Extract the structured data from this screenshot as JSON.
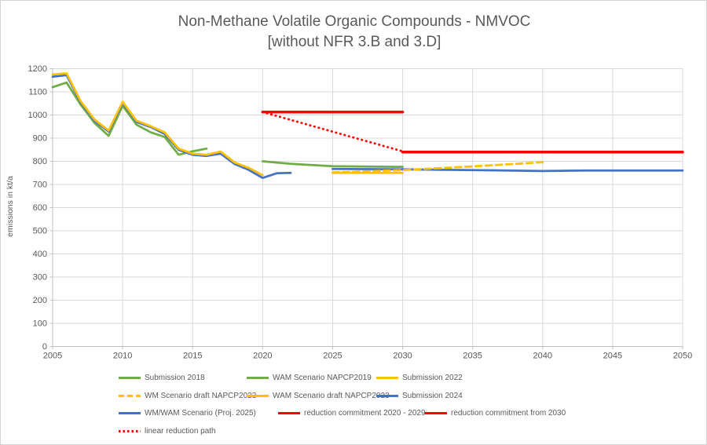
{
  "title": {
    "line1": "Non-Methane Volatile Organic Compounds - NMVOC",
    "line2": "[without NFR 3.B and 3.D]"
  },
  "y_axis": {
    "label": "emissions in kt/a",
    "ticks": [
      0,
      100,
      200,
      300,
      400,
      500,
      600,
      700,
      800,
      900,
      1000,
      1100,
      1200
    ]
  },
  "x_axis": {
    "ticks": [
      2005,
      2010,
      2015,
      2020,
      2025,
      2030,
      2035,
      2040,
      2045,
      2050
    ]
  },
  "chart_data": {
    "type": "line",
    "title": "Non-Methane Volatile Organic Compounds - NMVOC [without NFR 3.B and 3.D]",
    "xlabel": "",
    "ylabel": "emissions in kt/a",
    "xlim": [
      2005,
      2050
    ],
    "ylim": [
      0,
      1200
    ],
    "grid": true,
    "legend_position": "bottom",
    "series": [
      {
        "key": "submission_2018",
        "name": "Submission 2018",
        "color": "#70AD47",
        "style": "solid",
        "width": 2.75,
        "points": [
          [
            2005,
            1120
          ],
          [
            2006,
            1140
          ],
          [
            2007,
            1045
          ],
          [
            2008,
            965
          ],
          [
            2009,
            910
          ],
          [
            2010,
            1040
          ],
          [
            2011,
            958
          ],
          [
            2012,
            925
          ],
          [
            2013,
            905
          ],
          [
            2014,
            828
          ],
          [
            2015,
            843
          ],
          [
            2016,
            855
          ]
        ]
      },
      {
        "key": "wam_napcp2019",
        "name": "WAM Scenario NAPCP2019",
        "color": "#70AD47",
        "style": "solid",
        "width": 2.75,
        "points": [
          [
            2020,
            800
          ],
          [
            2022,
            789
          ],
          [
            2025,
            779
          ],
          [
            2030,
            776
          ]
        ]
      },
      {
        "key": "submission_2024",
        "name": "Submission 2024",
        "color": "#4472C4",
        "style": "solid",
        "width": 2.75,
        "points": [
          [
            2005,
            1165
          ],
          [
            2006,
            1172
          ],
          [
            2007,
            1055
          ],
          [
            2008,
            975
          ],
          [
            2009,
            928
          ],
          [
            2010,
            1052
          ],
          [
            2011,
            970
          ],
          [
            2012,
            948
          ],
          [
            2013,
            918
          ],
          [
            2014,
            850
          ],
          [
            2015,
            828
          ],
          [
            2016,
            823
          ],
          [
            2017,
            833
          ],
          [
            2018,
            788
          ],
          [
            2019,
            763
          ],
          [
            2020,
            728
          ],
          [
            2021,
            748
          ],
          [
            2022,
            750
          ]
        ]
      },
      {
        "key": "submission_2022",
        "name": "Submission 2022",
        "color": "#FFC000",
        "style": "solid",
        "width": 2.75,
        "points": [
          [
            2005,
            1175
          ],
          [
            2006,
            1180
          ],
          [
            2007,
            1060
          ],
          [
            2008,
            980
          ],
          [
            2009,
            933
          ],
          [
            2010,
            1057
          ],
          [
            2011,
            975
          ],
          [
            2012,
            952
          ],
          [
            2013,
            925
          ],
          [
            2014,
            855
          ],
          [
            2015,
            833
          ],
          [
            2016,
            828
          ],
          [
            2017,
            842
          ],
          [
            2018,
            795
          ],
          [
            2019,
            772
          ],
          [
            2020,
            740
          ]
        ]
      },
      {
        "key": "wam_draft_napcp2023",
        "name": "WAM Scenario draft NAPCP2023",
        "color": "#FFC000",
        "style": "solid",
        "width": 2.75,
        "points": [
          [
            2025,
            750
          ],
          [
            2030,
            750
          ]
        ]
      },
      {
        "key": "wmwam_proj2025",
        "name": "WM/WAM Scenario (Proj. 2025)",
        "color": "#4472C4",
        "style": "solid",
        "width": 2.75,
        "points": [
          [
            2025,
            767
          ],
          [
            2030,
            765
          ],
          [
            2035,
            762
          ],
          [
            2040,
            758
          ],
          [
            2043,
            760
          ],
          [
            2050,
            760
          ]
        ]
      },
      {
        "key": "wm_draft_napcp2023",
        "name": "WM Scenario draft NAPCP2023",
        "color": "#FFC000",
        "style": "dashed",
        "width": 2.75,
        "points": [
          [
            2025,
            752
          ],
          [
            2030,
            762
          ],
          [
            2035,
            778
          ],
          [
            2040,
            796
          ]
        ]
      },
      {
        "key": "commit_2020_2029",
        "name": "reduction commitment 2020 - 2029",
        "color": "#FF0000",
        "style": "solid",
        "width": 3.5,
        "points": [
          [
            2020,
            1013
          ],
          [
            2030,
            1013
          ]
        ]
      },
      {
        "key": "commit_2030",
        "name": "reduction commitment from 2030",
        "color": "#FF0000",
        "style": "solid",
        "width": 3.5,
        "points": [
          [
            2030,
            840
          ],
          [
            2050,
            840
          ]
        ]
      },
      {
        "key": "linear_path",
        "name": "linear reduction path",
        "color": "#FF0000",
        "style": "dotted",
        "width": 2.8,
        "points": [
          [
            2020,
            1013
          ],
          [
            2030,
            843
          ]
        ]
      }
    ]
  },
  "legend": {
    "rows": [
      [
        "submission_2018",
        "wam_napcp2019",
        "submission_2022"
      ],
      [
        "wm_draft_napcp2023",
        "wam_draft_napcp2023",
        "submission_2024"
      ],
      [
        "wmwam_proj2025",
        "commit_2020_2029",
        "commit_2030"
      ],
      [
        "linear_path"
      ]
    ]
  },
  "colors": {
    "green": "#70AD47",
    "yellow": "#FFC000",
    "blue": "#4472C4",
    "red": "#FF0000",
    "text": "#595959",
    "gridline": "#D9D9D9",
    "axis": "#BFBFBF"
  }
}
